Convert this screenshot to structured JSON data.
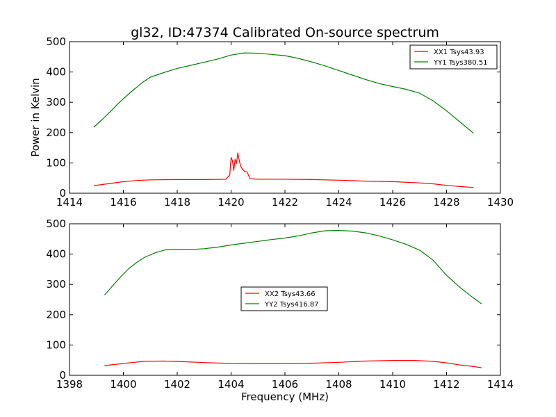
{
  "figure": {
    "title": "gl32, ID:47374 Calibrated On-source spectrum",
    "ylabel": "Power in Kelvin",
    "xlabel": "Frequency (MHz)"
  },
  "chart_data": [
    {
      "type": "line",
      "title": "gl32, ID:47374 Calibrated On-source spectrum",
      "xlabel": "",
      "ylabel": "Power in Kelvin",
      "xlim": [
        1414,
        1430
      ],
      "ylim": [
        0,
        500
      ],
      "xticks": [
        1414,
        1416,
        1418,
        1420,
        1422,
        1424,
        1426,
        1428,
        1430
      ],
      "yticks": [
        0,
        100,
        200,
        300,
        400,
        500
      ],
      "legend_position": "top-right",
      "grid": false,
      "series": [
        {
          "name": "XX1 Tsys43.93",
          "color": "#ff0000",
          "x": [
            1414.9,
            1415.5,
            1416.0,
            1416.5,
            1417.0,
            1418.0,
            1419.0,
            1419.8,
            1419.95,
            1420.0,
            1420.05,
            1420.1,
            1420.15,
            1420.2,
            1420.25,
            1420.3,
            1420.35,
            1420.4,
            1420.5,
            1420.6,
            1420.7,
            1421.0,
            1422.0,
            1423.0,
            1424.0,
            1425.0,
            1426.0,
            1427.0,
            1427.5,
            1428.0,
            1428.5,
            1429.0
          ],
          "y": [
            25,
            32,
            38,
            42,
            44,
            45,
            45,
            46,
            60,
            118,
            108,
            75,
            112,
            98,
            133,
            110,
            90,
            82,
            72,
            70,
            48,
            46,
            46,
            45,
            43,
            40,
            38,
            34,
            31,
            26,
            22,
            19
          ]
        },
        {
          "name": "YY1 Tsys380.51",
          "color": "#008000",
          "x": [
            1414.9,
            1415.2,
            1415.5,
            1415.8,
            1416.1,
            1416.4,
            1416.7,
            1417.0,
            1417.5,
            1418.0,
            1418.5,
            1419.0,
            1419.5,
            1420.0,
            1420.5,
            1421.0,
            1421.5,
            1422.0,
            1422.5,
            1423.0,
            1423.5,
            1424.0,
            1424.5,
            1425.0,
            1425.5,
            1426.0,
            1426.5,
            1427.0,
            1427.5,
            1428.0,
            1428.5,
            1429.0
          ],
          "y": [
            218,
            242,
            268,
            295,
            320,
            343,
            365,
            383,
            398,
            412,
            422,
            432,
            443,
            456,
            463,
            462,
            458,
            454,
            445,
            433,
            420,
            405,
            390,
            375,
            362,
            352,
            343,
            330,
            305,
            272,
            235,
            198
          ]
        }
      ]
    },
    {
      "type": "line",
      "title": "",
      "xlabel": "Frequency (MHz)",
      "ylabel": "",
      "xlim": [
        1398,
        1414
      ],
      "ylim": [
        0,
        500
      ],
      "xticks": [
        1398,
        1400,
        1402,
        1404,
        1406,
        1408,
        1410,
        1412,
        1414
      ],
      "yticks": [
        0,
        100,
        200,
        300,
        400,
        500
      ],
      "legend_position": "center",
      "grid": false,
      "series": [
        {
          "name": "XX2 Tsys43.66",
          "color": "#ff0000",
          "x": [
            1399.3,
            1399.8,
            1400.3,
            1400.8,
            1401.5,
            1402.2,
            1403.0,
            1404.0,
            1405.0,
            1406.0,
            1407.0,
            1408.0,
            1409.0,
            1410.0,
            1410.8,
            1411.5,
            1412.0,
            1412.5,
            1413.0,
            1413.3
          ],
          "y": [
            32,
            37,
            42,
            46,
            47,
            45,
            42,
            39,
            38,
            38,
            40,
            43,
            47,
            49,
            49,
            46,
            41,
            34,
            29,
            25
          ]
        },
        {
          "name": "YY2 Tsys416.87",
          "color": "#008000",
          "x": [
            1399.3,
            1399.6,
            1399.9,
            1400.2,
            1400.5,
            1400.8,
            1401.2,
            1401.6,
            1402.0,
            1402.5,
            1403.0,
            1403.5,
            1404.0,
            1404.5,
            1405.0,
            1405.5,
            1406.0,
            1406.5,
            1407.0,
            1407.5,
            1408.0,
            1408.5,
            1409.0,
            1409.5,
            1410.0,
            1410.5,
            1411.0,
            1411.5,
            1412.0,
            1412.5,
            1413.0,
            1413.3
          ],
          "y": [
            265,
            295,
            325,
            352,
            373,
            390,
            405,
            415,
            416,
            415,
            418,
            423,
            430,
            436,
            442,
            448,
            453,
            460,
            470,
            477,
            478,
            476,
            470,
            460,
            447,
            432,
            413,
            380,
            330,
            290,
            255,
            236
          ]
        }
      ]
    }
  ]
}
